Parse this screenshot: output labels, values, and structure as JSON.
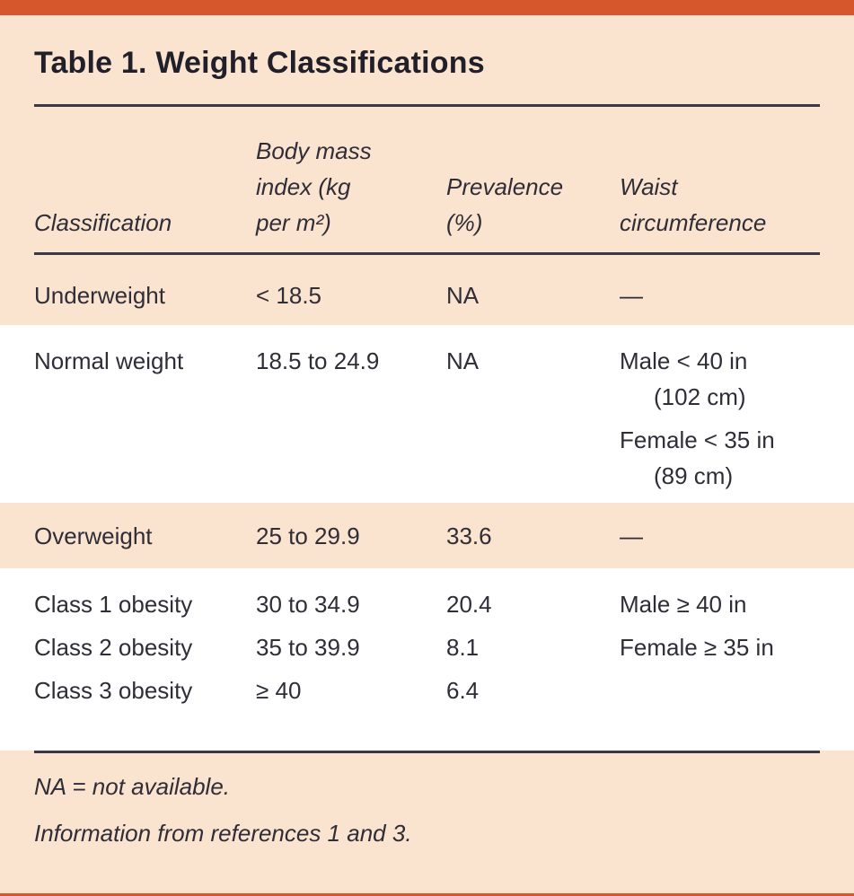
{
  "table": {
    "title": "Table 1. Weight Classifications",
    "headers": {
      "classification": "Classification",
      "bmi_lines": [
        "Body mass",
        "index (kg",
        "per m²)"
      ],
      "prevalence_lines": [
        "Prevalence",
        "(%)"
      ],
      "waist_lines": [
        "Waist",
        "circumference"
      ]
    },
    "rows": [
      {
        "classification": "Underweight",
        "bmi": "< 18.5",
        "prevalence": "NA",
        "waist": "—"
      },
      {
        "classification": "Normal weight",
        "bmi": "18.5 to 24.9",
        "prevalence": "NA",
        "waist_lines": [
          "Male < 40 in",
          "(102 cm)",
          "Female < 35 in",
          "(89 cm)"
        ]
      },
      {
        "classification": "Overweight",
        "bmi": "25 to 29.9",
        "prevalence": "33.6",
        "waist": "—"
      },
      {
        "classification": "Class 1 obesity",
        "bmi": "30 to 34.9",
        "prevalence": "20.4",
        "waist": "Male ≥ 40 in"
      },
      {
        "classification": "Class 2 obesity",
        "bmi": "35 to 39.9",
        "prevalence": "8.1",
        "waist": "Female ≥ 35 in"
      },
      {
        "classification": "Class 3 obesity",
        "bmi": "≥ 40",
        "prevalence": "6.4",
        "waist": ""
      }
    ],
    "footnotes": {
      "na": "NA = not available.",
      "source": "Information from references 1 and 3."
    },
    "colors": {
      "accent_orange": "#d6572b",
      "band_peach": "#fae3cf",
      "text": "#2f2d37",
      "rule": "#3a3843"
    }
  }
}
